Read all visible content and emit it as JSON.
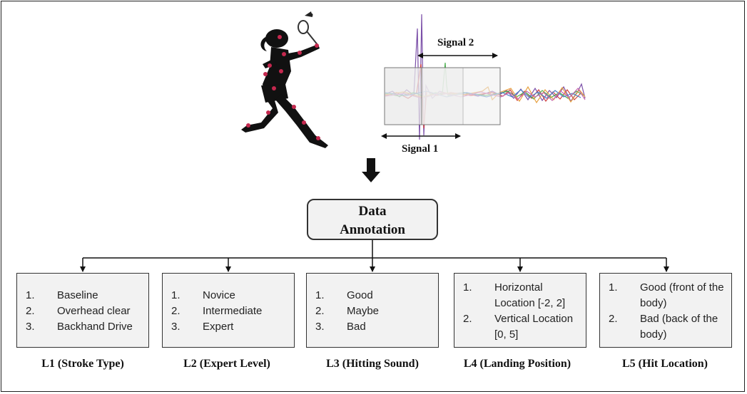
{
  "signal1_label": "Signal 1",
  "signal2_label": "Signal 2",
  "annotation": {
    "line1": "Data",
    "line2": "Annotation"
  },
  "categories": [
    {
      "items": [
        {
          "num": "1.",
          "text": "Baseline"
        },
        {
          "num": "2.",
          "text": "Overhead clear"
        },
        {
          "num": "3.",
          "text": "Backhand Drive"
        }
      ],
      "caption": "L1 (Stroke Type)"
    },
    {
      "items": [
        {
          "num": "1.",
          "text": "Novice"
        },
        {
          "num": "2.",
          "text": "Intermediate"
        },
        {
          "num": "3.",
          "text": "Expert"
        }
      ],
      "caption": "L2 (Expert Level)"
    },
    {
      "items": [
        {
          "num": "1.",
          "text": "Good"
        },
        {
          "num": "2.",
          "text": "Maybe"
        },
        {
          "num": "3.",
          "text": "Bad"
        }
      ],
      "caption": "L3 (Hitting Sound)"
    },
    {
      "items": [
        {
          "num": "1.",
          "text": "Horizontal Location [-2, 2]"
        },
        {
          "num": "2.",
          "text": "Vertical Location [0, 5]"
        }
      ],
      "caption": "L4 (Landing Position)"
    },
    {
      "items": [
        {
          "num": "1.",
          "text": "Good (front of the body)"
        },
        {
          "num": "2.",
          "text": "Bad  (back of the body)"
        }
      ],
      "caption": "L5 (Hit Location)"
    }
  ],
  "colors": {
    "box_fill": "#f2f2f2",
    "joint": "#c4284e",
    "silhouette": "#111111",
    "signal_colors": [
      "#7b4fa8",
      "#d04040",
      "#4caf50",
      "#e6a040",
      "#4a7fc8",
      "#c86ab0"
    ]
  }
}
